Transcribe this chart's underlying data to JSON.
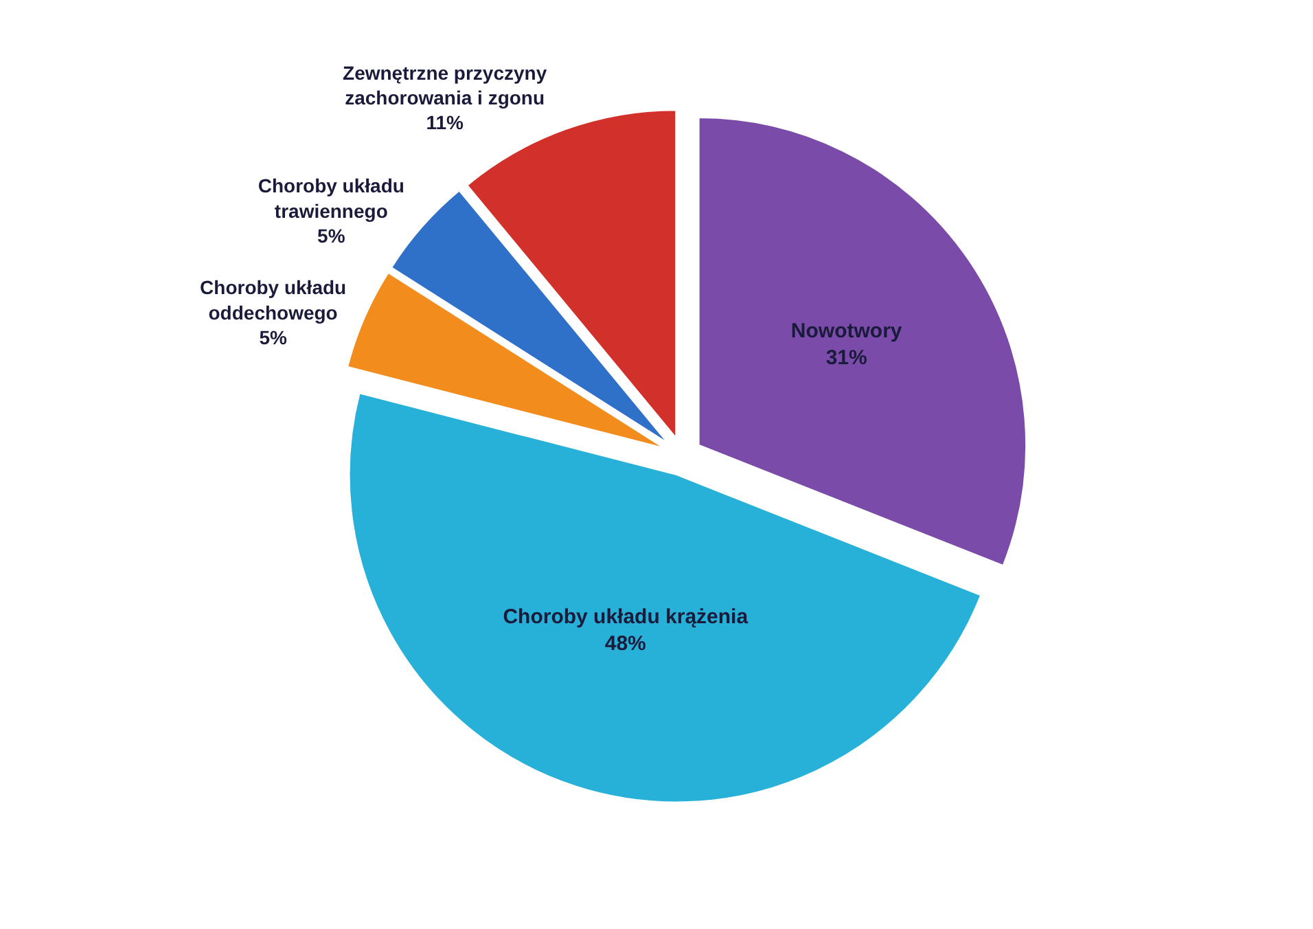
{
  "chart_data": {
    "type": "pie",
    "categories": [
      "Nowotwory",
      "Choroby układu krążenia",
      "Choroby układu oddechowego",
      "Choroby układu trawiennego",
      "Zewnętrzne przyczyny zachorowania i zgonu"
    ],
    "values": [
      31,
      48,
      5,
      5,
      11
    ],
    "value_labels": [
      "31%",
      "48%",
      "5%",
      "5%",
      "11%"
    ],
    "colors": [
      "#7a4ba8",
      "#27b0d8",
      "#f28c1c",
      "#2f70c8",
      "#d2302a"
    ],
    "legend": false
  }
}
